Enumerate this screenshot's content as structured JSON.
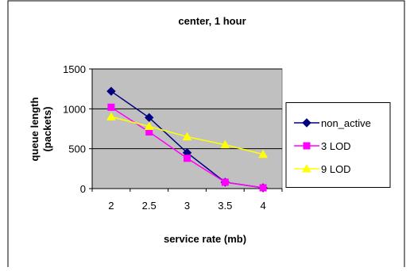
{
  "chart_data": {
    "type": "line",
    "title": "center, 1 hour",
    "xlabel": "service rate (mb)",
    "ylabel": "queue length (packets)",
    "ylabel_lines": [
      "queue length",
      "(packets)"
    ],
    "categories": [
      "2",
      "2.5",
      "3",
      "3.5",
      "4"
    ],
    "y_ticks": [
      "0",
      "500",
      "1000",
      "1500"
    ],
    "ylim": [
      0,
      1500
    ],
    "grid": true,
    "legend_position": "right",
    "plot_background": "#c0c0c0",
    "series": [
      {
        "name": "non_active",
        "values": [
          1220,
          890,
          450,
          80,
          10
        ],
        "color": "#000080",
        "marker": "diamond"
      },
      {
        "name": "3 LOD",
        "values": [
          1020,
          710,
          380,
          80,
          10
        ],
        "color": "#ff00ff",
        "marker": "square"
      },
      {
        "name": "9 LOD",
        "values": [
          900,
          780,
          650,
          550,
          430
        ],
        "color": "#ffff00",
        "marker": "triangle"
      }
    ]
  }
}
